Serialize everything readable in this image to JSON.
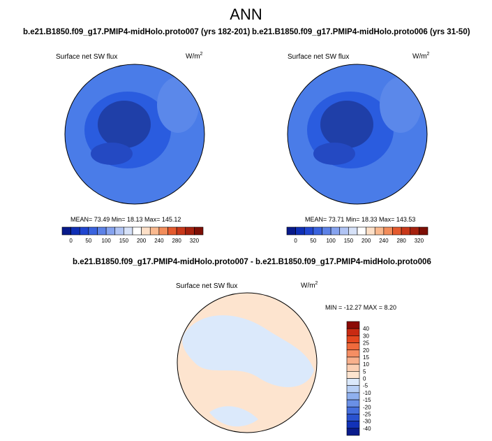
{
  "main_title": "ANN",
  "colors": {
    "map_deep": "#1f3fa8",
    "map_mid": "#2a5cdf",
    "map_light": "#4a7ce8",
    "diff_pos": "#fde4cf",
    "diff_neg": "#dbe9fb"
  },
  "chart_data": [
    {
      "type": "heatmap",
      "projection": "north-polar-stereographic",
      "case": "b.e21.B1850.f09_g17.PMIP4-midHolo.proto007 (yrs 182-201)",
      "variable": "Surface net SW flux",
      "units": "W/m",
      "units_exp": "2",
      "stats": {
        "mean": 73.49,
        "min": 18.13,
        "max": 145.12
      },
      "stats_text": "MEAN=  73.49   Min=  18.13   Max= 145.12",
      "colorbar_levels": [
        0,
        25,
        50,
        75,
        100,
        125,
        150,
        175,
        200,
        220,
        240,
        260,
        280,
        300,
        320
      ],
      "colorbar_labels": [
        "0",
        "50",
        "100",
        "150",
        "200",
        "240",
        "280",
        "320"
      ],
      "colorbar_colors": [
        "#081a8a",
        "#0f2fb5",
        "#2146d0",
        "#3a63de",
        "#5d82e7",
        "#86a3ef",
        "#b1c4f4",
        "#d7e2f8",
        "#ffffff",
        "#fde0c8",
        "#f9b98f",
        "#f28d5b",
        "#e45a2e",
        "#c8381a",
        "#a5210e",
        "#7d0f06"
      ]
    },
    {
      "type": "heatmap",
      "projection": "north-polar-stereographic",
      "case": "b.e21.B1850.f09_g17.PMIP4-midHolo.proto006 (yrs 31-50)",
      "variable": "Surface net SW flux",
      "units": "W/m",
      "units_exp": "2",
      "stats": {
        "mean": 73.71,
        "min": 18.33,
        "max": 143.53
      },
      "stats_text": "MEAN=  73.71   Min=  18.33   Max= 143.53",
      "colorbar_levels": [
        0,
        25,
        50,
        75,
        100,
        125,
        150,
        175,
        200,
        220,
        240,
        260,
        280,
        300,
        320
      ],
      "colorbar_labels": [
        "0",
        "50",
        "100",
        "150",
        "200",
        "240",
        "280",
        "320"
      ],
      "colorbar_colors": [
        "#081a8a",
        "#0f2fb5",
        "#2146d0",
        "#3a63de",
        "#5d82e7",
        "#86a3ef",
        "#b1c4f4",
        "#d7e2f8",
        "#ffffff",
        "#fde0c8",
        "#f9b98f",
        "#f28d5b",
        "#e45a2e",
        "#c8381a",
        "#a5210e",
        "#7d0f06"
      ]
    },
    {
      "type": "heatmap",
      "projection": "north-polar-stereographic",
      "case": "b.e21.B1850.f09_g17.PMIP4-midHolo.proto007 - b.e21.B1850.f09_g17.PMIP4-midHolo.proto006",
      "variable": "Surface net SW flux",
      "units": "W/m",
      "units_exp": "2",
      "stats": {
        "min": -12.27,
        "max": 8.2
      },
      "stats_text": "MIN = -12.27  MAX =   8.20",
      "colorbar_orientation": "vertical",
      "colorbar_labels": [
        "40",
        "30",
        "25",
        "20",
        "15",
        "10",
        "5",
        "0",
        "-5",
        "-10",
        "-15",
        "-20",
        "-25",
        "-30",
        "-40"
      ],
      "colorbar_colors": [
        "#8b0a05",
        "#c92a12",
        "#e4471f",
        "#ef6a3c",
        "#f58e63",
        "#f8b08c",
        "#fbcfb3",
        "#fde4cf",
        "#dbe9fb",
        "#b7cff5",
        "#8fb0ee",
        "#6a90e6",
        "#456edc",
        "#2a52cf",
        "#1232b8",
        "#0a1c8c"
      ]
    }
  ]
}
